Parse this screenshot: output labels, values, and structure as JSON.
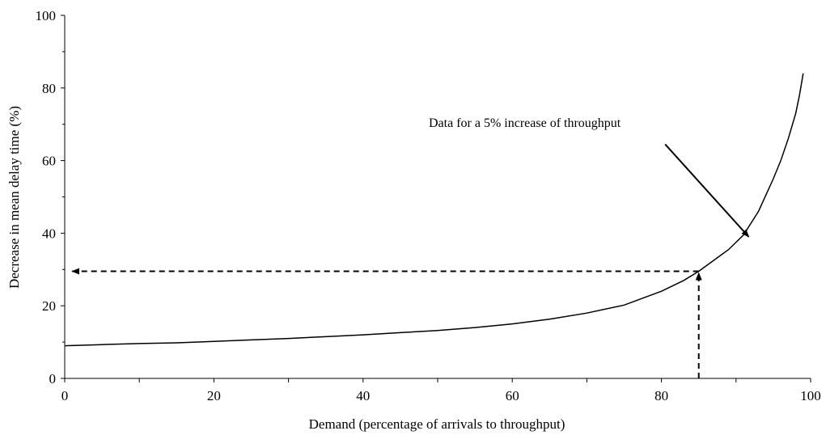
{
  "chart_data": {
    "type": "line",
    "title": "",
    "xlabel": "Demand (percentage of arrivals to throughput)",
    "ylabel": "Decrease in mean delay time (%)",
    "xlim": [
      0,
      100
    ],
    "ylim": [
      0,
      100
    ],
    "x_ticks": [
      "0",
      "20",
      "40",
      "60",
      "80",
      "100"
    ],
    "y_ticks": [
      "0",
      "20",
      "40",
      "60",
      "80",
      "100"
    ],
    "grid": false,
    "legend": "none",
    "series": [
      {
        "x": [
          0,
          5,
          10,
          15,
          20,
          25,
          30,
          35,
          40,
          45,
          50,
          55,
          60,
          65,
          70,
          75,
          80,
          83,
          85,
          87,
          89,
          91,
          93,
          94,
          95,
          96,
          97,
          98,
          98.5,
          99
        ],
        "y": [
          9,
          9.3,
          9.6,
          9.8,
          10.2,
          10.6,
          11,
          11.5,
          12,
          12.6,
          13.2,
          14,
          15,
          16.3,
          18,
          20.2,
          24,
          27,
          29.5,
          32.5,
          35.5,
          39.5,
          46,
          50.5,
          55,
          60,
          66,
          73,
          78,
          84
        ]
      }
    ],
    "annotations": [
      {
        "text": "Data for a 5% increase of throughput",
        "arrow_from": [
          80.5,
          64.5
        ],
        "arrow_to": [
          91.7,
          39
        ]
      }
    ],
    "reference_point": {
      "x": 85,
      "y": 29.5
    }
  }
}
